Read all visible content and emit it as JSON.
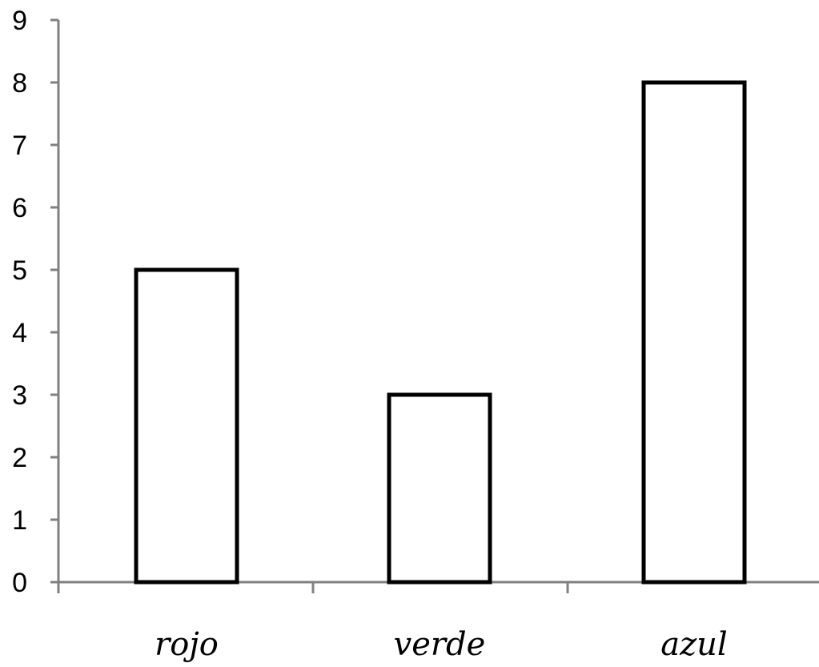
{
  "chart_data": {
    "type": "bar",
    "categories": [
      "rojo",
      "verde",
      "azul"
    ],
    "values": [
      5,
      3,
      8
    ],
    "title": "",
    "xlabel": "",
    "ylabel": "",
    "ylim": [
      0,
      9
    ],
    "yticks": [
      "0",
      "1",
      "2",
      "3",
      "4",
      "5",
      "6",
      "7",
      "8",
      "9"
    ],
    "grid": false,
    "legend": "none",
    "colors": {
      "axis": "#808080",
      "bar_fill": "#ffffff",
      "bar_stroke": "#000000",
      "text": "#000000"
    }
  }
}
